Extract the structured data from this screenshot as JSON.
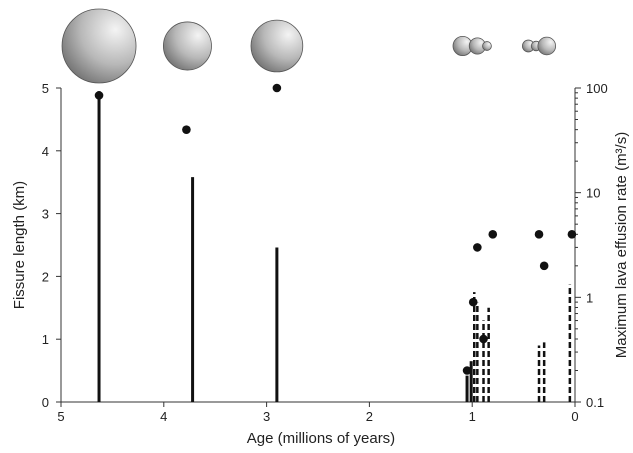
{
  "chart_data": {
    "type": "bar",
    "title": "",
    "xlabel": "Age (millions of years)",
    "ylabel": "Fissure length (km)",
    "y2label": "Maximum lava effusion rate (m³/s)",
    "xlim": [
      5,
      0
    ],
    "ylim": [
      0,
      5
    ],
    "y2lim": [
      0.1,
      100
    ],
    "y2_scale": "log",
    "grid": false,
    "x_ticks": [
      "5",
      "4",
      "3",
      "2",
      "1",
      "0"
    ],
    "y_ticks": [
      "0",
      "1",
      "2",
      "3",
      "4",
      "5"
    ],
    "y2_ticks": [
      "0.1",
      "1",
      "10",
      "100"
    ],
    "fissures": [
      {
        "age": 4.63,
        "length": 4.95,
        "style": "solid"
      },
      {
        "age": 3.72,
        "length": 3.58,
        "style": "solid"
      },
      {
        "age": 2.9,
        "length": 2.46,
        "style": "solid"
      },
      {
        "age": 1.05,
        "length": 0.42,
        "style": "solid"
      },
      {
        "age": 1.01,
        "length": 0.65,
        "style": "solid"
      },
      {
        "age": 0.98,
        "length": 1.75,
        "style": "dashed"
      },
      {
        "age": 0.95,
        "length": 1.58,
        "style": "dashed"
      },
      {
        "age": 0.89,
        "length": 1.3,
        "style": "dashed"
      },
      {
        "age": 0.84,
        "length": 1.5,
        "style": "dashed"
      },
      {
        "age": 0.35,
        "length": 0.9,
        "style": "dashed"
      },
      {
        "age": 0.3,
        "length": 0.95,
        "style": "dashed"
      },
      {
        "age": 0.05,
        "length": 1.87,
        "style": "dashed"
      }
    ],
    "effusion_rate": [
      {
        "age": 4.63,
        "rate": 85
      },
      {
        "age": 3.78,
        "rate": 40
      },
      {
        "age": 2.9,
        "rate": 100
      },
      {
        "age": 1.05,
        "rate": 0.2
      },
      {
        "age": 0.99,
        "rate": 0.9
      },
      {
        "age": 0.95,
        "rate": 3.0
      },
      {
        "age": 0.89,
        "rate": 0.4
      },
      {
        "age": 0.8,
        "rate": 4.0
      },
      {
        "age": 0.35,
        "rate": 4.0
      },
      {
        "age": 0.3,
        "rate": 2.0
      },
      {
        "age": 0.03,
        "rate": 4.0
      }
    ],
    "spheres": [
      {
        "age": 4.63,
        "sizes": [
          1.0
        ]
      },
      {
        "age": 3.77,
        "sizes": [
          0.65
        ]
      },
      {
        "age": 2.9,
        "sizes": [
          0.7
        ]
      },
      {
        "age": 1.0,
        "sizes": [
          0.26,
          0.22,
          0.12
        ]
      },
      {
        "age": 0.35,
        "sizes": [
          0.16,
          0.13,
          0.24
        ]
      }
    ]
  }
}
